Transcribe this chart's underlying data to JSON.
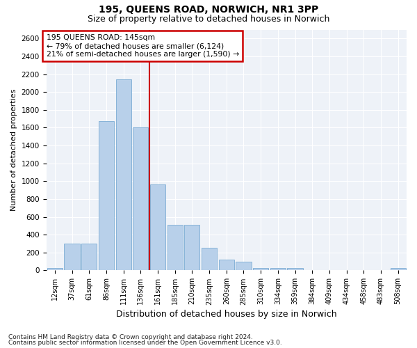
{
  "title1": "195, QUEENS ROAD, NORWICH, NR1 3PP",
  "title2": "Size of property relative to detached houses in Norwich",
  "xlabel": "Distribution of detached houses by size in Norwich",
  "ylabel": "Number of detached properties",
  "categories": [
    "12sqm",
    "37sqm",
    "61sqm",
    "86sqm",
    "111sqm",
    "136sqm",
    "161sqm",
    "185sqm",
    "210sqm",
    "235sqm",
    "260sqm",
    "285sqm",
    "310sqm",
    "334sqm",
    "359sqm",
    "384sqm",
    "409sqm",
    "434sqm",
    "458sqm",
    "483sqm",
    "508sqm"
  ],
  "values": [
    25,
    300,
    300,
    1670,
    2140,
    1600,
    960,
    510,
    510,
    250,
    120,
    95,
    30,
    30,
    30,
    5,
    5,
    5,
    5,
    5,
    30
  ],
  "bar_color": "#b8d0ea",
  "bar_edge_color": "#7bacd4",
  "vline_color": "#cc0000",
  "vline_idx": 6,
  "ylim": [
    0,
    2700
  ],
  "yticks": [
    0,
    200,
    400,
    600,
    800,
    1000,
    1200,
    1400,
    1600,
    1800,
    2000,
    2200,
    2400,
    2600
  ],
  "annotation_title": "195 QUEENS ROAD: 145sqm",
  "annotation_line1": "← 79% of detached houses are smaller (6,124)",
  "annotation_line2": "21% of semi-detached houses are larger (1,590) →",
  "annotation_box_color": "#ffffff",
  "annotation_box_edge_color": "#cc0000",
  "footnote1": "Contains HM Land Registry data © Crown copyright and database right 2024.",
  "footnote2": "Contains public sector information licensed under the Open Government Licence v3.0.",
  "bg_color": "#eef2f8",
  "fig_bg_color": "#ffffff",
  "grid_color": "#ffffff",
  "title1_fontsize": 10,
  "title2_fontsize": 9,
  "ylabel_fontsize": 8,
  "xlabel_fontsize": 9,
  "footnote_fontsize": 6.5,
  "tick_fontsize": 7.5,
  "xtick_fontsize": 7
}
